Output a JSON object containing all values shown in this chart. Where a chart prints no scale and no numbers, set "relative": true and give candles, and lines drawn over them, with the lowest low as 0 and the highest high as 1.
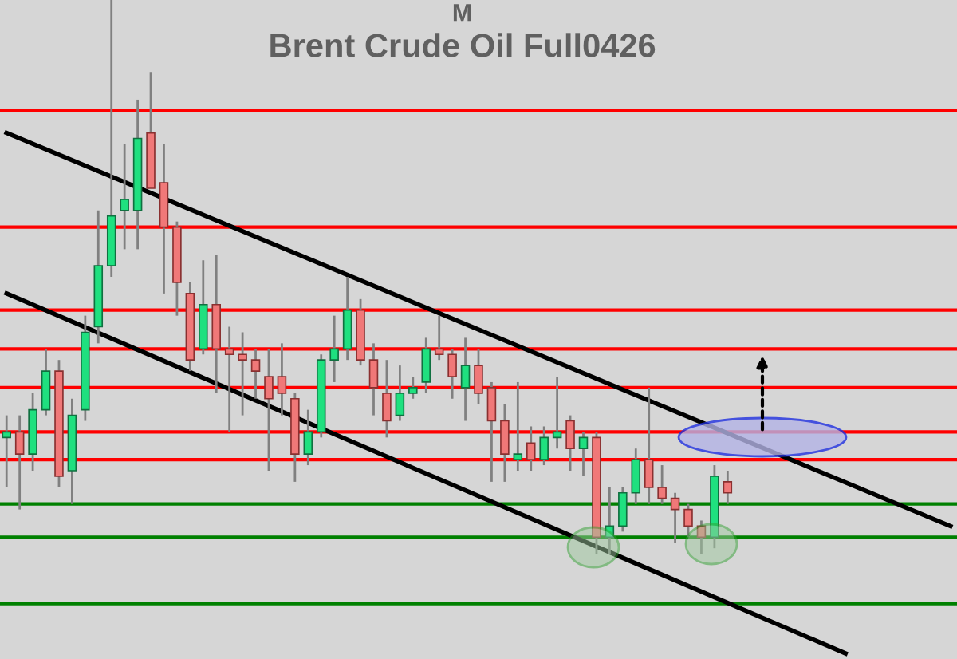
{
  "chart_data": {
    "type": "candlestick",
    "title": "Brent Crude Oil Full0426",
    "subtitle": "M",
    "relative": true,
    "categories": [
      null,
      null,
      null,
      null,
      null,
      null,
      null,
      null,
      null,
      null,
      null,
      null,
      null,
      null,
      null,
      null,
      null,
      null,
      null,
      null,
      null,
      null,
      null,
      null,
      null,
      null,
      null,
      null,
      null,
      null,
      null,
      null,
      null,
      null,
      null,
      null,
      null,
      null,
      null,
      null,
      null,
      null,
      null,
      null,
      null,
      null,
      null,
      null,
      null,
      null,
      null,
      null,
      null,
      null,
      null,
      null,
      null,
      null,
      null,
      null,
      null,
      null,
      null,
      null,
      null,
      null,
      null,
      null,
      null,
      null,
      null,
      null,
      null
    ],
    "ohlc": [
      [
        0.21,
        0.25,
        0.12,
        0.22
      ],
      [
        0.22,
        0.25,
        0.08,
        0.18
      ],
      [
        0.18,
        0.29,
        0.15,
        0.26
      ],
      [
        0.26,
        0.37,
        0.25,
        0.33
      ],
      [
        0.33,
        0.35,
        0.12,
        0.14
      ],
      [
        0.15,
        0.28,
        0.09,
        0.25
      ],
      [
        0.26,
        0.43,
        0.24,
        0.4
      ],
      [
        0.41,
        0.62,
        0.38,
        0.52
      ],
      [
        0.52,
        1.0,
        0.5,
        0.61
      ],
      [
        0.62,
        0.74,
        0.55,
        0.64
      ],
      [
        0.62,
        0.82,
        0.55,
        0.75
      ],
      [
        0.76,
        0.87,
        0.66,
        0.66
      ],
      [
        0.67,
        0.74,
        0.47,
        0.59
      ],
      [
        0.59,
        0.6,
        0.43,
        0.49
      ],
      [
        0.47,
        0.49,
        0.33,
        0.35
      ],
      [
        0.37,
        0.53,
        0.36,
        0.45
      ],
      [
        0.45,
        0.54,
        0.29,
        0.37
      ],
      [
        0.37,
        0.41,
        0.22,
        0.36
      ],
      [
        0.36,
        0.4,
        0.25,
        0.35
      ],
      [
        0.35,
        0.37,
        0.28,
        0.33
      ],
      [
        0.32,
        0.37,
        0.15,
        0.28
      ],
      [
        0.32,
        0.38,
        0.25,
        0.29
      ],
      [
        0.28,
        0.29,
        0.13,
        0.18
      ],
      [
        0.18,
        0.26,
        0.16,
        0.22
      ],
      [
        0.22,
        0.36,
        0.21,
        0.35
      ],
      [
        0.35,
        0.43,
        0.31,
        0.37
      ],
      [
        0.37,
        0.5,
        0.35,
        0.44
      ],
      [
        0.44,
        0.46,
        0.34,
        0.35
      ],
      [
        0.35,
        0.38,
        0.25,
        0.3
      ],
      [
        0.29,
        0.35,
        0.21,
        0.24
      ],
      [
        0.25,
        0.34,
        0.24,
        0.29
      ],
      [
        0.29,
        0.32,
        0.28,
        0.3
      ],
      [
        0.31,
        0.39,
        0.29,
        0.37
      ],
      [
        0.37,
        0.43,
        0.35,
        0.36
      ],
      [
        0.36,
        0.37,
        0.28,
        0.32
      ],
      [
        0.3,
        0.39,
        0.24,
        0.34
      ],
      [
        0.34,
        0.37,
        0.27,
        0.29
      ],
      [
        0.3,
        0.31,
        0.13,
        0.24
      ],
      [
        0.24,
        0.27,
        0.13,
        0.18
      ],
      [
        0.17,
        0.31,
        0.15,
        0.18
      ],
      [
        0.2,
        0.23,
        0.15,
        0.17
      ],
      [
        0.17,
        0.23,
        0.16,
        0.21
      ],
      [
        0.21,
        0.32,
        0.19,
        0.22
      ],
      [
        0.24,
        0.25,
        0.15,
        0.19
      ],
      [
        0.19,
        0.22,
        0.14,
        0.21
      ],
      [
        0.21,
        0.22,
        0.0,
        0.03
      ],
      [
        0.03,
        0.12,
        0.0,
        0.05
      ],
      [
        0.05,
        0.12,
        0.04,
        0.11
      ],
      [
        0.11,
        0.19,
        0.09,
        0.17
      ],
      [
        0.17,
        0.3,
        0.09,
        0.12
      ],
      [
        0.12,
        0.16,
        0.09,
        0.1
      ],
      [
        0.1,
        0.11,
        0.02,
        0.08
      ],
      [
        0.08,
        0.09,
        0.03,
        0.05
      ],
      [
        0.05,
        0.06,
        0.0,
        0.03
      ],
      [
        0.03,
        0.16,
        0.01,
        0.14
      ],
      [
        0.13,
        0.15,
        0.09,
        0.11
      ],
      null,
      null,
      null,
      null,
      null,
      null,
      null,
      null,
      null,
      null,
      null,
      null,
      null,
      null,
      null,
      null,
      null
    ],
    "colors": [
      "#1fe07f",
      "#f07878",
      "#1fe07f",
      "#1fe07f",
      "#f07878",
      "#1fe07f",
      "#1fe07f",
      "#1fe07f",
      "#1fe07f",
      "#1fe07f",
      "#1fe07f",
      "#f07878",
      "#f07878",
      "#f07878",
      "#f07878",
      "#1fe07f",
      "#f07878",
      "#f07878",
      "#f07878",
      "#f07878",
      "#f07878",
      "#f07878",
      "#f07878",
      "#1fe07f",
      "#1fe07f",
      "#1fe07f",
      "#1fe07f",
      "#f07878",
      "#f07878",
      "#f07878",
      "#1fe07f",
      "#1fe07f",
      "#1fe07f",
      "#f07878",
      "#f07878",
      "#1fe07f",
      "#f07878",
      "#f07878",
      "#f07878",
      "#1fe07f",
      "#f07878",
      "#1fe07f",
      "#1fe07f",
      "#f07878",
      "#1fe07f",
      "#f07878",
      "#1fe07f",
      "#1fe07f",
      "#1fe07f",
      "#f07878",
      "#f07878",
      "#f07878",
      "#f07878",
      "#f07878",
      "#1fe07f",
      "#f07878",
      null,
      null,
      null,
      null,
      null,
      null,
      null,
      null,
      null,
      null,
      null,
      null,
      null,
      null,
      null,
      null,
      null
    ],
    "series": [
      {
        "type": "line",
        "color": "#000000",
        "values": [
          0.76,
          null,
          null,
          null,
          null,
          null,
          null,
          null,
          null,
          null,
          null,
          null,
          null,
          null,
          null,
          null,
          null,
          null,
          null,
          null,
          null,
          null,
          null,
          null,
          null,
          null,
          null,
          null,
          null,
          null,
          null,
          null,
          null,
          null,
          null,
          null,
          null,
          null,
          null,
          null,
          null,
          null,
          null,
          null,
          null,
          null,
          null,
          null,
          null,
          null,
          null,
          null,
          null,
          null,
          null,
          null,
          null,
          null,
          null,
          null,
          null,
          null,
          null,
          null,
          null,
          null,
          null,
          null,
          null,
          null,
          null,
          null,
          0.05
        ]
      },
      {
        "type": "line",
        "color": "#000000",
        "values": [
          0.47,
          null,
          null,
          null,
          null,
          null,
          null,
          null,
          null,
          null,
          null,
          null,
          null,
          null,
          null,
          null,
          null,
          null,
          null,
          null,
          null,
          null,
          null,
          null,
          null,
          null,
          null,
          null,
          null,
          null,
          null,
          null,
          null,
          null,
          null,
          null,
          null,
          null,
          null,
          null,
          null,
          null,
          null,
          null,
          null,
          null,
          null,
          null,
          null,
          null,
          null,
          null,
          null,
          null,
          null,
          null,
          null,
          null,
          null,
          null,
          null,
          null,
          null,
          null,
          -0.18,
          null,
          null,
          null,
          null,
          null,
          null,
          null,
          null
        ]
      }
    ],
    "ref_lines": [
      {
        "axis": "y",
        "value": 0.8,
        "color": "#ff0000"
      },
      {
        "axis": "y",
        "value": 0.59,
        "color": "#ff0000"
      },
      {
        "axis": "y",
        "value": 0.44,
        "color": "#ff0000"
      },
      {
        "axis": "y",
        "value": 0.37,
        "color": "#ff0000"
      },
      {
        "axis": "y",
        "value": 0.3,
        "color": "#ff0000"
      },
      {
        "axis": "y",
        "value": 0.22,
        "color": "#ff0000"
      },
      {
        "axis": "y",
        "value": 0.17,
        "color": "#ff0000"
      },
      {
        "axis": "y",
        "value": 0.09,
        "color": "#008000"
      },
      {
        "axis": "y",
        "value": 0.03,
        "color": "#008000"
      },
      {
        "axis": "y",
        "value": -0.09,
        "color": "#008000"
      }
    ]
  }
}
